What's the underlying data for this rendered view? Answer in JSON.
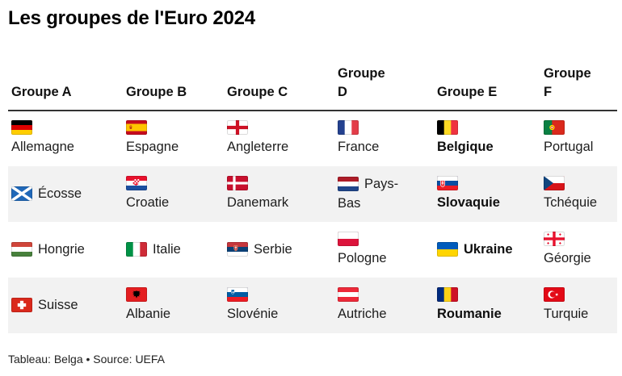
{
  "title": "Les groupes de l'Euro 2024",
  "attribution": "Tableau: Belga • Source: UEFA",
  "colors": {
    "background": "#ffffff",
    "stripe": "#f2f2f2",
    "rule": "#333333",
    "text": "#1d1d1d",
    "title": "#000000"
  },
  "table": {
    "headers": [
      "Groupe A",
      "Groupe B",
      "Groupe C",
      "Groupe D",
      "Groupe E",
      "Groupe F"
    ],
    "highlighted_group": "Groupe E",
    "rows": [
      [
        {
          "name": "Allemagne",
          "flag": "germany",
          "stacked": true,
          "bold": false
        },
        {
          "name": "Espagne",
          "flag": "spain",
          "stacked": true,
          "bold": false
        },
        {
          "name": "Angleterre",
          "flag": "england",
          "stacked": true,
          "bold": false
        },
        {
          "name": "France",
          "flag": "france",
          "stacked": true,
          "bold": false
        },
        {
          "name": "Belgique",
          "flag": "belgium",
          "stacked": true,
          "bold": true
        },
        {
          "name": "Portugal",
          "flag": "portugal",
          "stacked": true,
          "bold": false
        }
      ],
      [
        {
          "name": "Écosse",
          "flag": "scotland",
          "stacked": false,
          "bold": false
        },
        {
          "name": "Croatie",
          "flag": "croatia",
          "stacked": true,
          "bold": false
        },
        {
          "name": "Danemark",
          "flag": "denmark",
          "stacked": true,
          "bold": false
        },
        {
          "name": "Pays-Bas",
          "flag": "netherlands",
          "stacked": false,
          "bold": false
        },
        {
          "name": "Slovaquie",
          "flag": "slovakia",
          "stacked": true,
          "bold": true
        },
        {
          "name": "Tchéquie",
          "flag": "czechia",
          "stacked": true,
          "bold": false
        }
      ],
      [
        {
          "name": "Hongrie",
          "flag": "hungary",
          "stacked": false,
          "bold": false
        },
        {
          "name": "Italie",
          "flag": "italy",
          "stacked": false,
          "bold": false
        },
        {
          "name": "Serbie",
          "flag": "serbia",
          "stacked": false,
          "bold": false
        },
        {
          "name": "Pologne",
          "flag": "poland",
          "stacked": true,
          "bold": false
        },
        {
          "name": "Ukraine",
          "flag": "ukraine",
          "stacked": false,
          "bold": true
        },
        {
          "name": "Géorgie",
          "flag": "georgia",
          "stacked": true,
          "bold": false
        }
      ],
      [
        {
          "name": "Suisse",
          "flag": "switzerland",
          "stacked": false,
          "bold": false
        },
        {
          "name": "Albanie",
          "flag": "albania",
          "stacked": true,
          "bold": false
        },
        {
          "name": "Slovénie",
          "flag": "slovenia",
          "stacked": true,
          "bold": false
        },
        {
          "name": "Autriche",
          "flag": "austria",
          "stacked": true,
          "bold": false
        },
        {
          "name": "Roumanie",
          "flag": "romania",
          "stacked": true,
          "bold": true
        },
        {
          "name": "Turquie",
          "flag": "turkey",
          "stacked": true,
          "bold": false
        }
      ]
    ]
  },
  "chart_data": {
    "type": "table",
    "title": "Les groupes de l'Euro 2024",
    "columns": [
      "Groupe A",
      "Groupe B",
      "Groupe C",
      "Groupe D",
      "Groupe E",
      "Groupe F"
    ],
    "rows": [
      [
        "Allemagne",
        "Espagne",
        "Angleterre",
        "France",
        "Belgique",
        "Portugal"
      ],
      [
        "Écosse",
        "Croatie",
        "Danemark",
        "Pays-Bas",
        "Slovaquie",
        "Tchéquie"
      ],
      [
        "Hongrie",
        "Italie",
        "Serbie",
        "Pologne",
        "Ukraine",
        "Géorgie"
      ],
      [
        "Suisse",
        "Albanie",
        "Slovénie",
        "Autriche",
        "Roumanie",
        "Turquie"
      ]
    ],
    "notes": "Group E team names rendered in bold; zebra striping on rows 2 and 4; source line below table."
  }
}
